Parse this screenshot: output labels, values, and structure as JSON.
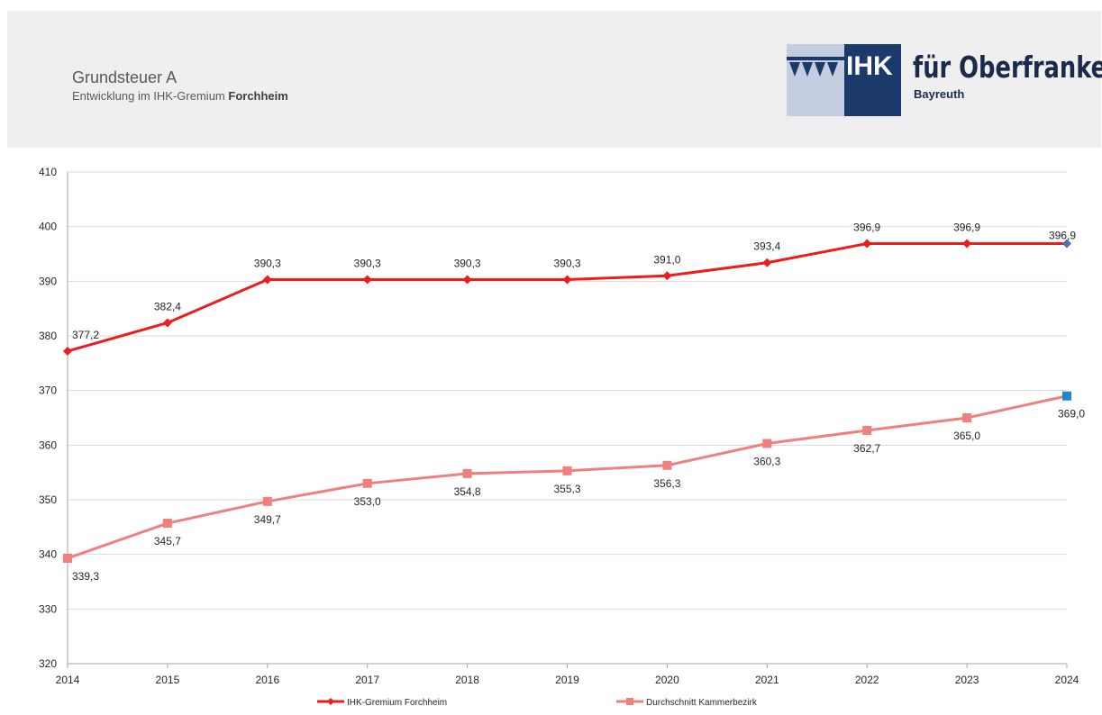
{
  "header": {
    "title": "Grundsteuer A",
    "subtitle_prefix": "Entwicklung im IHK-Gremium ",
    "subtitle_bold": "Forchheim"
  },
  "logo": {
    "mark": "IHK",
    "name": "für Oberfranken",
    "sub": "Bayreuth",
    "colors": {
      "light": "#c5cde0",
      "dark": "#1b3a6b",
      "text": "#1a2b4a"
    }
  },
  "chart_data": {
    "type": "line",
    "x": [
      "2014",
      "2015",
      "2016",
      "2017",
      "2018",
      "2019",
      "2020",
      "2021",
      "2022",
      "2023",
      "2024"
    ],
    "ylim": [
      320,
      410
    ],
    "yticks": [
      320,
      330,
      340,
      350,
      360,
      370,
      380,
      390,
      400,
      410
    ],
    "grid": true,
    "legend_position": "bottom",
    "series": [
      {
        "name": "IHK-Gremium Forchheim",
        "values": [
          377.2,
          382.4,
          390.3,
          390.3,
          390.3,
          390.3,
          391.0,
          393.4,
          396.9,
          396.9,
          396.9
        ],
        "labels": [
          "377,2",
          "382,4",
          "390,3",
          "390,3",
          "390,3",
          "390,3",
          "391,0",
          "393,4",
          "396,9",
          "396,9",
          "396,9"
        ],
        "color": "#ee1c1c",
        "marker": "diamond",
        "last_marker_color": "#4a6fb5"
      },
      {
        "name": "Durchschnitt Kammerbezirk",
        "values": [
          339.3,
          345.7,
          349.7,
          353.0,
          354.8,
          355.3,
          356.3,
          360.3,
          362.7,
          365.0,
          369.0
        ],
        "labels": [
          "339,3",
          "345,7",
          "349,7",
          "353,0",
          "354,8",
          "355,3",
          "356,3",
          "360,3",
          "362,7",
          "365,0",
          "369,0"
        ],
        "color": "#f08080",
        "marker": "square",
        "last_marker_color": "#1e88c8"
      }
    ]
  }
}
